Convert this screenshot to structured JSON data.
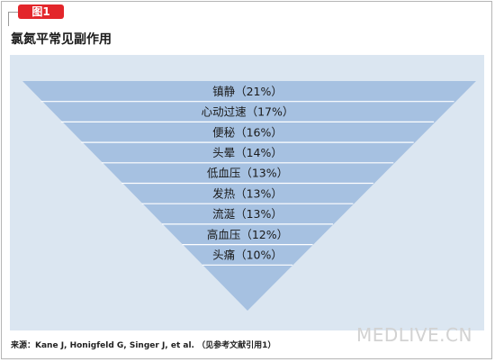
{
  "figure_label": "图1",
  "title": "氯氮平常见副作用",
  "source": "来源：Kane J, Honigfeld G, Singer J, et al. （见参考文献引用1）",
  "watermark": "MEDLIVE.CN",
  "colors": {
    "badge": "#e3262b",
    "panel_background": "#dbe6f1",
    "funnel_fill": "#a6c1e1",
    "divider": "#ffffff"
  },
  "chart_data": {
    "type": "funnel",
    "title": "氯氮平常见副作用",
    "categories": [
      "镇静",
      "心动过速",
      "便秘",
      "头晕",
      "低血压",
      "发热",
      "流涎",
      "高血压",
      "头痛"
    ],
    "values": [
      21,
      17,
      16,
      14,
      13,
      13,
      13,
      12,
      10
    ],
    "value_unit": "%",
    "labels": [
      "镇静（21%）",
      "心动过速（17%）",
      "便秘（16%）",
      "头晕（14%）",
      "低血压（13%）",
      "发热（13%）",
      "流涎（13%）",
      "高血压（12%）",
      "头痛（10%）"
    ],
    "legend": "none",
    "grid": false
  }
}
